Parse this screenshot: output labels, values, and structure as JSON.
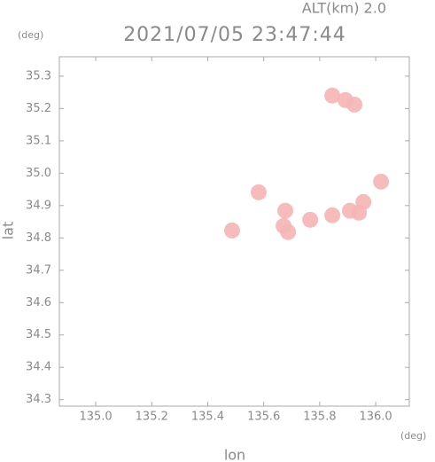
{
  "chart_data": {
    "type": "scatter",
    "annotation": "ALT(km) 2.0",
    "y_unit": "(deg)",
    "title": "2021/07/05 23:47:44",
    "ylabel": "lat",
    "xlabel": "lon",
    "x_unit": "(deg)",
    "color": "#f5b5b5",
    "x": [
      135.845,
      135.892,
      135.924,
      135.677,
      135.671,
      135.687,
      135.845,
      135.908,
      135.956,
      135.94,
      135.766,
      136.019,
      135.582,
      135.487
    ],
    "y": [
      35.24,
      35.226,
      35.212,
      34.884,
      34.837,
      34.818,
      34.87,
      34.884,
      34.911,
      34.878,
      34.856,
      34.974,
      34.941,
      34.823
    ],
    "xlim": [
      134.87,
      136.12
    ],
    "ylim": [
      34.28,
      35.36
    ],
    "xticks": [
      {
        "value": 135.0,
        "label": "135.0"
      },
      135.2,
      135.4,
      135.6,
      135.8,
      {
        "value": 136.0,
        "label": "136.0"
      }
    ],
    "yticks": [
      34.3,
      34.4,
      34.5,
      34.6,
      34.7,
      34.8,
      34.9,
      {
        "value": 35.0,
        "label": "35.0"
      },
      35.1,
      35.2,
      35.3
    ]
  }
}
